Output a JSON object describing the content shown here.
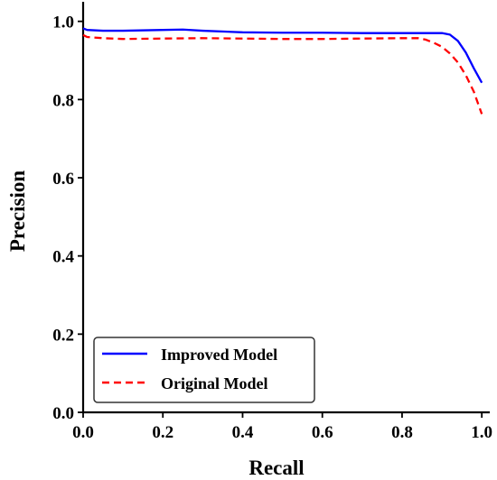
{
  "chart_data": {
    "type": "line",
    "title": "",
    "xlabel": "Recall",
    "ylabel": "Precision",
    "xlim": [
      0.0,
      1.02
    ],
    "ylim": [
      0.0,
      1.05
    ],
    "xticks": [
      0.0,
      0.2,
      0.4,
      0.6,
      0.8,
      1.0
    ],
    "yticks": [
      0.0,
      0.2,
      0.4,
      0.6,
      0.8,
      1.0
    ],
    "tick_labels_x": [
      "0.0",
      "0.2",
      "0.4",
      "0.6",
      "0.8",
      "1.0"
    ],
    "tick_labels_y": [
      "0.0",
      "0.2",
      "0.4",
      "0.6",
      "0.8",
      "1.0"
    ],
    "grid": false,
    "legend_position": "lower-left",
    "series": [
      {
        "name": "Improved Model",
        "color": "#0000ff",
        "style": "solid",
        "x": [
          0.0,
          0.01,
          0.05,
          0.1,
          0.2,
          0.25,
          0.3,
          0.4,
          0.5,
          0.6,
          0.7,
          0.8,
          0.85,
          0.9,
          0.92,
          0.94,
          0.96,
          0.98,
          1.0
        ],
        "y": [
          0.982,
          0.978,
          0.976,
          0.976,
          0.978,
          0.979,
          0.976,
          0.972,
          0.971,
          0.971,
          0.97,
          0.97,
          0.97,
          0.97,
          0.966,
          0.95,
          0.92,
          0.88,
          0.843
        ]
      },
      {
        "name": "Original Model",
        "color": "#ff0000",
        "style": "dashed",
        "x": [
          0.0,
          0.01,
          0.05,
          0.1,
          0.2,
          0.3,
          0.4,
          0.5,
          0.6,
          0.7,
          0.8,
          0.84,
          0.86,
          0.88,
          0.9,
          0.92,
          0.94,
          0.96,
          0.98,
          1.0
        ],
        "y": [
          0.965,
          0.96,
          0.957,
          0.955,
          0.956,
          0.957,
          0.956,
          0.955,
          0.955,
          0.956,
          0.957,
          0.957,
          0.953,
          0.945,
          0.935,
          0.918,
          0.895,
          0.862,
          0.82,
          0.763
        ]
      }
    ]
  }
}
